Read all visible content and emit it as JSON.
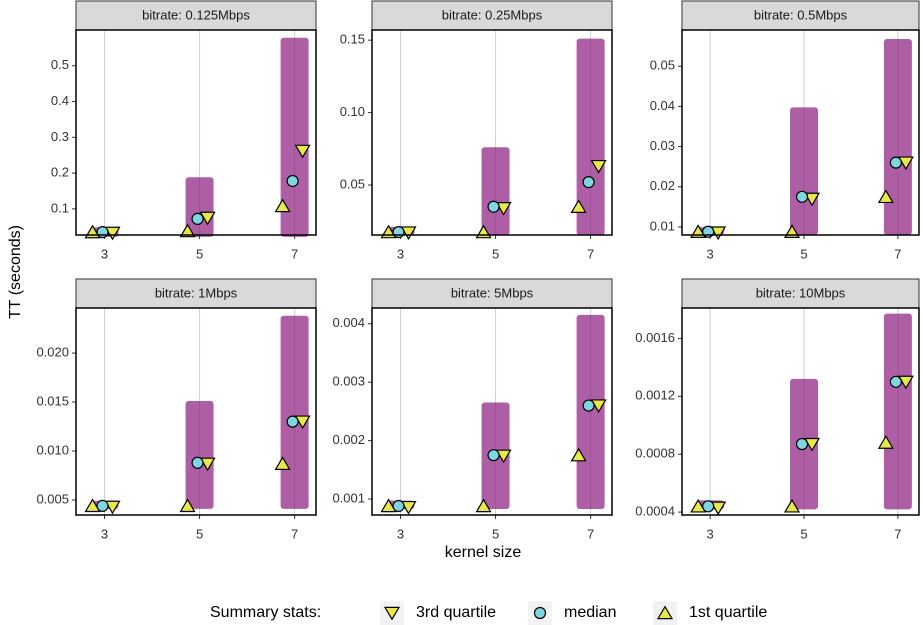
{
  "x_label": "kernel size",
  "y_label": "TT (seconds)",
  "legend_title": "Summary stats:",
  "chart_data": [
    {
      "type": "scatter",
      "title": "bitrate: 0.125Mbps",
      "x": [
        3,
        5,
        7
      ],
      "xlim": [
        2.4,
        7.45
      ],
      "xticks": [
        3,
        5,
        7
      ],
      "ylim": [
        0.027,
        0.6
      ],
      "yticks": [
        0.1,
        0.2,
        0.3,
        0.4,
        0.5
      ],
      "grid": "x",
      "points": {
        "color": "#8b1a7e",
        "min": [
          0.03,
          0.03,
          0.03
        ],
        "max": [
          0.04,
          0.18,
          0.57
        ]
      },
      "series": [
        {
          "name": "3rd quartile",
          "color": "#e8e84a",
          "values": [
            0.033,
            0.075,
            0.262
          ]
        },
        {
          "name": "median",
          "color": "#7fd6e0",
          "values": [
            0.035,
            0.072,
            0.178
          ]
        },
        {
          "name": "1st quartile",
          "color": "#e8e84a",
          "values": [
            0.035,
            0.038,
            0.108
          ]
        }
      ]
    },
    {
      "type": "scatter",
      "title": "bitrate: 0.25Mbps",
      "x": [
        3,
        5,
        7
      ],
      "xlim": [
        2.4,
        7.45
      ],
      "xticks": [
        3,
        5,
        7
      ],
      "ylim": [
        0.0155,
        0.157
      ],
      "yticks": [
        0.05,
        {
          "value": 0.1,
          "label": "0.10"
        },
        0.15
      ],
      "grid": "x",
      "points": {
        "color": "#8b1a7e",
        "min": [
          0.0175,
          0.0175,
          0.0175
        ],
        "max": [
          0.019,
          0.074,
          0.149
        ]
      },
      "series": [
        {
          "name": "3rd quartile",
          "color": "#e8e84a",
          "values": [
            0.0172,
            0.034,
            0.063
          ]
        },
        {
          "name": "median",
          "color": "#7fd6e0",
          "values": [
            0.0175,
            0.035,
            0.052
          ]
        },
        {
          "name": "1st quartile",
          "color": "#e8e84a",
          "values": [
            0.0175,
            0.0175,
            0.035
          ]
        }
      ]
    },
    {
      "type": "scatter",
      "title": "bitrate: 0.5Mbps",
      "x": [
        3,
        5,
        7
      ],
      "xlim": [
        2.4,
        7.45
      ],
      "xticks": [
        3,
        5,
        7
      ],
      "ylim": [
        0.008,
        0.059
      ],
      "yticks": [
        0.01,
        0.02,
        0.03,
        0.04,
        0.05
      ],
      "grid": "x",
      "points": {
        "color": "#8b1a7e",
        "min": [
          0.0088,
          0.0088,
          0.0088
        ],
        "max": [
          0.0092,
          0.039,
          0.056
        ]
      },
      "series": [
        {
          "name": "3rd quartile",
          "color": "#e8e84a",
          "values": [
            0.0086,
            0.017,
            0.026
          ]
        },
        {
          "name": "median",
          "color": "#7fd6e0",
          "values": [
            0.0088,
            0.0175,
            0.026
          ]
        },
        {
          "name": "1st quartile",
          "color": "#e8e84a",
          "values": [
            0.0088,
            0.0088,
            0.0175
          ]
        }
      ]
    },
    {
      "type": "scatter",
      "title": "bitrate: 1Mbps",
      "x": [
        3,
        5,
        7
      ],
      "xlim": [
        2.4,
        7.45
      ],
      "xticks": [
        3,
        5,
        7
      ],
      "ylim": [
        0.00347,
        0.0246
      ],
      "yticks": [
        0.005,
        {
          "value": 0.01,
          "label": "0.010"
        },
        0.015,
        {
          "value": 0.02,
          "label": "0.020"
        }
      ],
      "grid": "x",
      "points": {
        "color": "#8b1a7e",
        "min": [
          0.0044,
          0.0044,
          0.0044
        ],
        "max": [
          0.0046,
          0.0148,
          0.0235
        ]
      },
      "series": [
        {
          "name": "3rd quartile",
          "color": "#e8e84a",
          "values": [
            0.0043,
            0.0087,
            0.013
          ]
        },
        {
          "name": "median",
          "color": "#7fd6e0",
          "values": [
            0.0044,
            0.0088,
            0.013
          ]
        },
        {
          "name": "1st quartile",
          "color": "#e8e84a",
          "values": [
            0.0044,
            0.0044,
            0.0087
          ]
        }
      ]
    },
    {
      "type": "scatter",
      "title": "bitrate: 5Mbps",
      "x": [
        3,
        5,
        7
      ],
      "xlim": [
        2.4,
        7.45
      ],
      "xticks": [
        3,
        5,
        7
      ],
      "ylim": [
        0.000726,
        0.00427
      ],
      "yticks": [
        0.001,
        0.002,
        0.003,
        0.004
      ],
      "grid": "x",
      "points": {
        "color": "#8b1a7e",
        "min": [
          0.00088,
          0.00088,
          0.00088
        ],
        "max": [
          0.00092,
          0.0026,
          0.0041
        ]
      },
      "series": [
        {
          "name": "3rd quartile",
          "color": "#e8e84a",
          "values": [
            0.00086,
            0.00174,
            0.0026
          ]
        },
        {
          "name": "median",
          "color": "#7fd6e0",
          "values": [
            0.00088,
            0.00175,
            0.0026
          ]
        },
        {
          "name": "1st quartile",
          "color": "#e8e84a",
          "values": [
            0.00088,
            0.00088,
            0.00175
          ]
        }
      ]
    },
    {
      "type": "scatter",
      "title": "bitrate: 10Mbps",
      "x": [
        3,
        5,
        7
      ],
      "xlim": [
        2.4,
        7.45
      ],
      "xticks": [
        3,
        5,
        7
      ],
      "ylim": [
        0.00038,
        0.00181
      ],
      "yticks": [
        0.0004,
        0.0008,
        0.0012,
        0.0016
      ],
      "grid": "x",
      "points": {
        "color": "#8b1a7e",
        "min": [
          0.00044,
          0.00044,
          0.00044
        ],
        "max": [
          0.00046,
          0.0013,
          0.00175
        ]
      },
      "series": [
        {
          "name": "3rd quartile",
          "color": "#e8e84a",
          "values": [
            0.00043,
            0.00087,
            0.0013
          ]
        },
        {
          "name": "median",
          "color": "#7fd6e0",
          "values": [
            0.00044,
            0.00087,
            0.0013
          ]
        },
        {
          "name": "1st quartile",
          "color": "#e8e84a",
          "values": [
            0.00044,
            0.00044,
            0.00088
          ]
        }
      ]
    }
  ]
}
